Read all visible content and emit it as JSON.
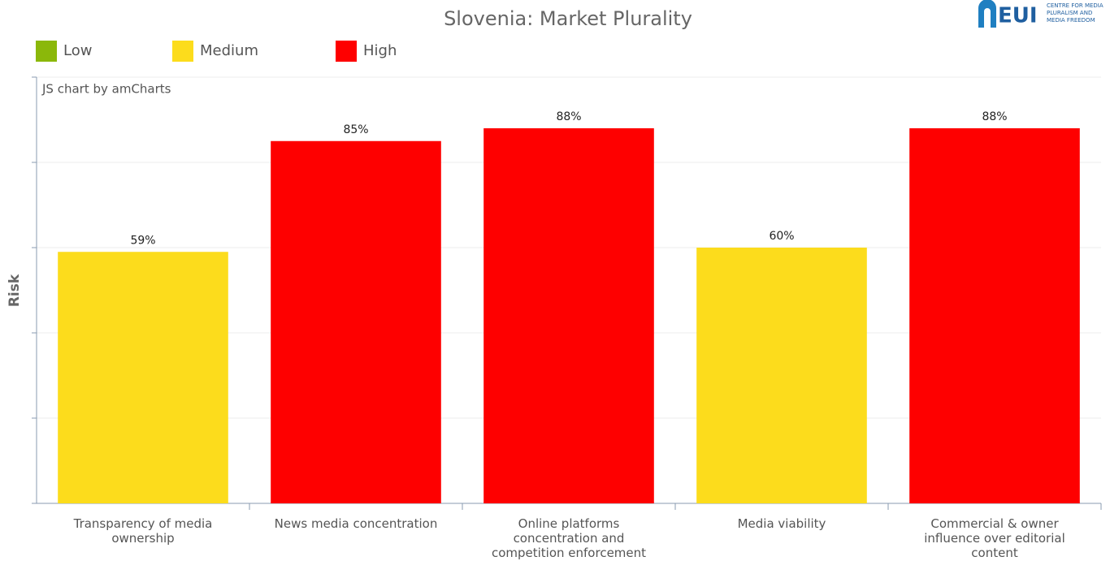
{
  "chart_data": {
    "type": "bar",
    "title": "Slovenia: Market Plurality",
    "credit": "JS chart by amCharts",
    "logo": {
      "text": "EUI",
      "caption": "CENTRE FOR MEDIA PLURALISM AND MEDIA FREEDOM"
    },
    "y_label": "Risk",
    "legend": [
      {
        "name": "Low",
        "color": "#8bb80a"
      },
      {
        "name": "Medium",
        "color": "#fcdc1c"
      },
      {
        "name": "High",
        "color": "#fe0000"
      }
    ],
    "categories": [
      "Transparency of media ownership",
      "News media concentration",
      "Online platforms concentration and competition enforcement",
      "Media viability",
      "Commercial & owner influence over editorial content"
    ],
    "values": [
      59,
      85,
      88,
      60,
      88
    ],
    "value_labels": [
      "59%",
      "85%",
      "88%",
      "60%",
      "88%"
    ],
    "colors": [
      "#fcdc1c",
      "#fe0000",
      "#fe0000",
      "#fcdc1c",
      "#fe0000"
    ],
    "ylim": [
      0,
      100
    ],
    "yticks": [
      0,
      20,
      40,
      60,
      80,
      100
    ],
    "grid": true
  }
}
